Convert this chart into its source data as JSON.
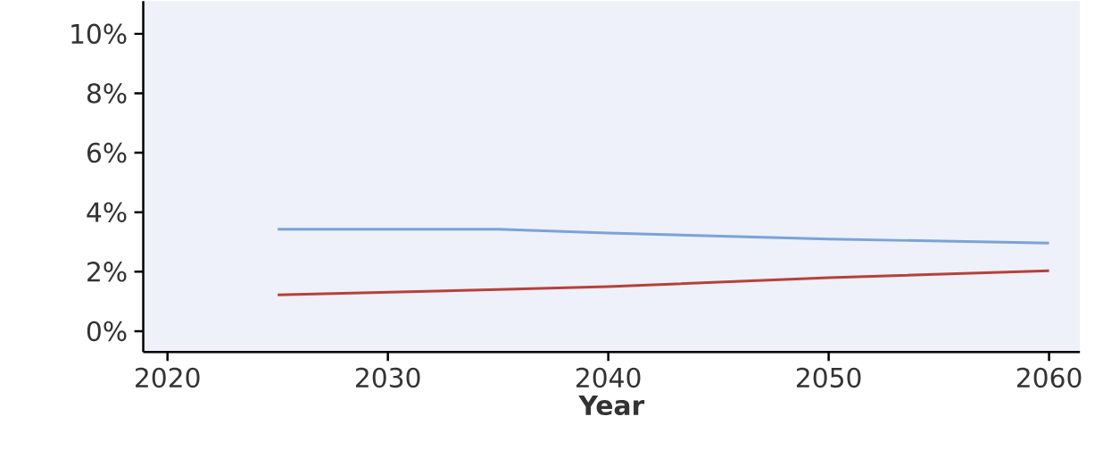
{
  "chart_data": {
    "type": "line",
    "xlabel": "Year",
    "x": [
      2025,
      2035,
      2040,
      2050,
      2060
    ],
    "series": [
      {
        "color": "#7ba3d8",
        "values": [
          3.43,
          3.43,
          3.3,
          3.1,
          2.96
        ]
      },
      {
        "color": "#b5423a",
        "values": [
          1.22,
          1.4,
          1.5,
          1.8,
          2.03
        ]
      }
    ],
    "xlim": [
      2018.9,
      2061.4
    ],
    "ylim": [
      -0.7,
      11.1
    ],
    "xticks": [
      2020,
      2030,
      2040,
      2050,
      2060
    ],
    "yticks": [
      {
        "value": 0,
        "label": "0%"
      },
      {
        "value": 2,
        "label": "2%"
      },
      {
        "value": 4,
        "label": "4%"
      },
      {
        "value": 6,
        "label": "6%"
      },
      {
        "value": 8,
        "label": "8%"
      },
      {
        "value": 10,
        "label": "10%"
      }
    ],
    "grid": false,
    "marker": "none",
    "line_style": "solid"
  }
}
